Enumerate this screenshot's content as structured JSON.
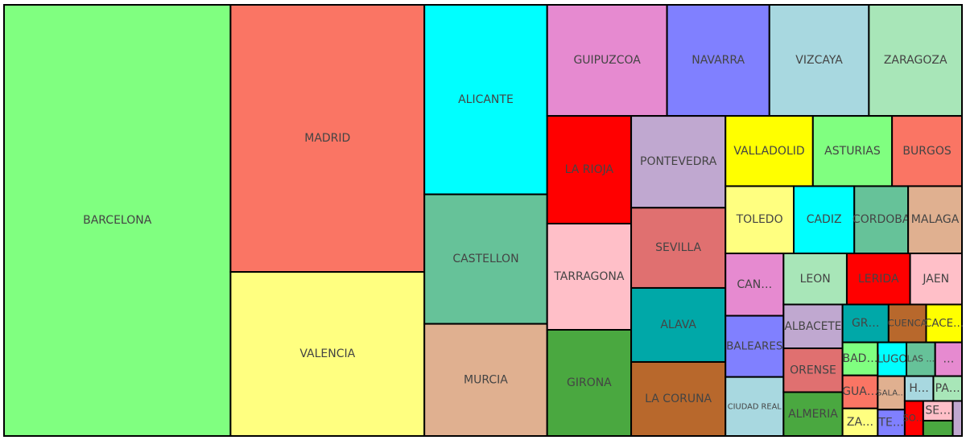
{
  "chart_data": {
    "type": "treemap",
    "categories": [
      "BARCELONA",
      "MADRID",
      "VALENCIA",
      "ALICANTE",
      "CASTELLON",
      "MURCIA",
      "GUIPUZCOA",
      "NAVARRA",
      "VIZCAYA",
      "ZARAGOZA",
      "LA RIOJA",
      "TARRAGONA",
      "GIRONA",
      "PONTEVEDRA",
      "SEVILLA",
      "ALAVA",
      "LA CORUNA",
      "VALLADOLID",
      "ASTURIAS",
      "BURGOS",
      "TOLEDO",
      "CADIZ",
      "CORDOBA",
      "MALAGA",
      "CAN…",
      "BALEARES",
      "CIUDAD REAL",
      "LEON",
      "LERIDA",
      "JAEN",
      "ALBACETE",
      "ORENSE",
      "ALMERIA",
      "GR…",
      "CUENCA",
      "CACE…",
      "BAD…",
      "GUA…",
      "ZA…",
      "LUGO",
      "LAS …",
      "…",
      "SALA…",
      "TE…",
      "H…",
      "PA…",
      "SO…",
      "SE…",
      null,
      null
    ],
    "values": [
      1511,
      801,
      492,
      360,
      246,
      213,
      206,
      176,
      171,
      160,
      140,
      138,
      138,
      134,
      117,
      108,
      108,
      95,
      86,
      76,
      71,
      63,
      56,
      56,
      56,
      55,
      53,
      50,
      50,
      41,
      40,
      40,
      40,
      27,
      22,
      21,
      18,
      18,
      15,
      15,
      15,
      14,
      14,
      11,
      11,
      11,
      10,
      9,
      7,
      5
    ],
    "colors": [
      "#80ff80",
      "#fa7564",
      "#ffff80",
      "#00ffff",
      "#66c299",
      "#e0b090",
      "#e68ad0",
      "#8080ff",
      "#a8d8e0",
      "#a8e6b8",
      "#ff0000",
      "#ffbfc8",
      "#4aa840",
      "#c0a8d0",
      "#e07070",
      "#00a8a8",
      "#b8682c",
      "#ffff00",
      "#80ff80",
      "#fa7564",
      "#ffff80",
      "#00ffff",
      "#66c299",
      "#e0b090",
      "#e68ad0",
      "#8080ff",
      "#a8d8e0",
      "#a8e6b8",
      "#ff0000",
      "#ffbfc8",
      "#c0a8d0",
      "#e07070",
      "#4aa840",
      "#00a8a8",
      "#b8682c",
      "#ffff00",
      "#80ff80",
      "#fa7564",
      "#ffff80",
      "#00ffff",
      "#66c299",
      "#e68ad0",
      "#e0b090",
      "#8080ff",
      "#a8d8e0",
      "#a8e6b8",
      "#ff0000",
      "#ffbfc8",
      "#4aa840",
      "#c0a8d0"
    ]
  }
}
